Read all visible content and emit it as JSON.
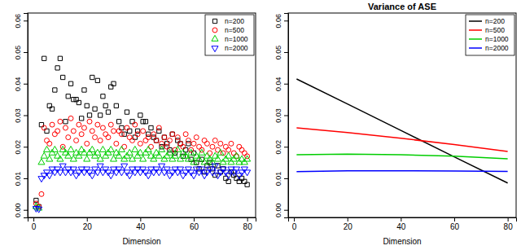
{
  "chart_data": [
    {
      "type": "scatter",
      "xlabel": "Dimension",
      "x": [
        1,
        2,
        3,
        4,
        5,
        6,
        7,
        8,
        9,
        10,
        11,
        12,
        13,
        14,
        15,
        16,
        17,
        18,
        19,
        20,
        21,
        22,
        23,
        24,
        25,
        26,
        27,
        28,
        29,
        30,
        31,
        32,
        33,
        34,
        35,
        36,
        37,
        38,
        39,
        40,
        41,
        42,
        43,
        44,
        45,
        46,
        47,
        48,
        49,
        50,
        51,
        52,
        53,
        54,
        55,
        56,
        57,
        58,
        59,
        60,
        61,
        62,
        63,
        64,
        65,
        66,
        67,
        68,
        69,
        70,
        71,
        72,
        73,
        74,
        75,
        76,
        77,
        78,
        79,
        80
      ],
      "xlim": [
        -2.16,
        83.16
      ],
      "xticks": [
        0,
        20,
        40,
        60,
        80
      ],
      "ylim": [
        -0.0024,
        0.0624
      ],
      "yticks": [
        {
          "value": 0,
          "label": "0.00"
        },
        0.01,
        0.02,
        0.03,
        0.04,
        0.05,
        0.06
      ],
      "legend": "top-right",
      "series": [
        {
          "name": "n=200",
          "color": "#000000",
          "marker": "square",
          "values": [
            0.003,
            0.001,
            0.027,
            0.048,
            0.025,
            0.033,
            0.032,
            0.038,
            0.045,
            0.048,
            0.042,
            0.028,
            0.036,
            0.04,
            0.035,
            0.035,
            0.034,
            0.029,
            0.038,
            0.033,
            0.03,
            0.042,
            0.032,
            0.041,
            0.03,
            0.036,
            0.033,
            0.031,
            0.039,
            0.04,
            0.033,
            0.028,
            0.026,
            0.024,
            0.031,
            0.025,
            0.028,
            0.023,
            0.025,
            0.03,
            0.028,
            0.028,
            0.024,
            0.026,
            0.023,
            0.022,
            0.025,
            0.02,
            0.023,
            0.021,
            0.019,
            0.024,
            0.018,
            0.022,
            0.021,
            0.017,
            0.019,
            0.021,
            0.016,
            0.018,
            0.015,
            0.013,
            0.016,
            0.012,
            0.014,
            0.015,
            0.013,
            0.011,
            0.014,
            0.012,
            0.013,
            0.01,
            0.009,
            0.012,
            0.011,
            0.01,
            0.009,
            0.01,
            0.009,
            0.008
          ]
        },
        {
          "name": "n=500",
          "color": "#ff0000",
          "marker": "circle",
          "values": [
            0.002,
            0.001,
            0.005,
            0.026,
            0.022,
            0.021,
            0.027,
            0.024,
            0.025,
            0.028,
            0.02,
            0.026,
            0.023,
            0.029,
            0.025,
            0.022,
            0.027,
            0.024,
            0.026,
            0.021,
            0.028,
            0.025,
            0.023,
            0.027,
            0.022,
            0.026,
            0.024,
            0.023,
            0.027,
            0.025,
            0.021,
            0.025,
            0.024,
            0.02,
            0.026,
            0.023,
            0.022,
            0.027,
            0.024,
            0.021,
            0.025,
            0.022,
            0.023,
            0.02,
            0.024,
            0.022,
            0.026,
            0.021,
            0.023,
            0.02,
            0.022,
            0.024,
            0.019,
            0.023,
            0.021,
            0.02,
            0.024,
            0.022,
            0.019,
            0.021,
            0.023,
            0.02,
            0.019,
            0.022,
            0.021,
            0.018,
            0.02,
            0.022,
            0.019,
            0.021,
            0.018,
            0.02,
            0.019,
            0.021,
            0.018,
            0.017,
            0.02,
            0.019,
            0.018,
            0.017
          ]
        },
        {
          "name": "n=1000",
          "color": "#00cd00",
          "marker": "triangle",
          "values": [
            0.001,
            0.0005,
            0.015,
            0.017,
            0.019,
            0.016,
            0.018,
            0.019,
            0.017,
            0.016,
            0.019,
            0.018,
            0.017,
            0.019,
            0.016,
            0.018,
            0.017,
            0.019,
            0.018,
            0.016,
            0.018,
            0.019,
            0.017,
            0.018,
            0.016,
            0.019,
            0.017,
            0.018,
            0.019,
            0.016,
            0.018,
            0.017,
            0.019,
            0.016,
            0.017,
            0.018,
            0.016,
            0.019,
            0.017,
            0.018,
            0.016,
            0.018,
            0.019,
            0.017,
            0.016,
            0.018,
            0.017,
            0.019,
            0.016,
            0.017,
            0.018,
            0.016,
            0.017,
            0.019,
            0.016,
            0.018,
            0.017,
            0.016,
            0.018,
            0.015,
            0.017,
            0.016,
            0.018,
            0.015,
            0.017,
            0.016,
            0.015,
            0.017,
            0.016,
            0.018,
            0.015,
            0.016,
            0.017,
            0.015,
            0.016,
            0.017,
            0.015,
            0.016,
            0.015,
            0.016
          ]
        },
        {
          "name": "n=2000",
          "color": "#0000ff",
          "marker": "triangle-down",
          "values": [
            0.0005,
            0.0003,
            0.01,
            0.011,
            0.012,
            0.011,
            0.013,
            0.012,
            0.013,
            0.012,
            0.014,
            0.012,
            0.013,
            0.012,
            0.013,
            0.011,
            0.012,
            0.013,
            0.012,
            0.013,
            0.012,
            0.011,
            0.013,
            0.012,
            0.014,
            0.012,
            0.013,
            0.012,
            0.011,
            0.013,
            0.012,
            0.013,
            0.012,
            0.014,
            0.012,
            0.011,
            0.013,
            0.012,
            0.013,
            0.012,
            0.013,
            0.012,
            0.011,
            0.013,
            0.012,
            0.013,
            0.012,
            0.014,
            0.012,
            0.013,
            0.011,
            0.012,
            0.013,
            0.012,
            0.013,
            0.011,
            0.012,
            0.013,
            0.012,
            0.011,
            0.013,
            0.012,
            0.013,
            0.011,
            0.012,
            0.013,
            0.012,
            0.014,
            0.011,
            0.012,
            0.013,
            0.012,
            0.011,
            0.013,
            0.012,
            0.013,
            0.011,
            0.012,
            0.013,
            0.012
          ]
        }
      ]
    },
    {
      "type": "line",
      "title": "Variance of ASE",
      "xlabel": "Dimension",
      "x": [
        1,
        20,
        40,
        60,
        80
      ],
      "xlim": [
        -2.16,
        83.16
      ],
      "xticks": [
        0,
        20,
        40,
        60,
        80
      ],
      "ylim": [
        -0.0024,
        0.0624
      ],
      "yticks": [
        {
          "value": 0,
          "label": "0.00"
        },
        0.01,
        0.02,
        0.03,
        0.04,
        0.05,
        0.06
      ],
      "legend": "top-right",
      "series": [
        {
          "name": "n=200",
          "color": "#000000",
          "line_style": "solid",
          "values": [
            0.0415,
            0.0336,
            0.0252,
            0.0168,
            0.0085
          ]
        },
        {
          "name": "n=500",
          "color": "#ff0000",
          "line_style": "solid",
          "values": [
            0.026,
            0.0245,
            0.0227,
            0.0207,
            0.0185
          ]
        },
        {
          "name": "n=1000",
          "color": "#00cd00",
          "line_style": "solid",
          "values": [
            0.0175,
            0.0177,
            0.0175,
            0.017,
            0.0162
          ]
        },
        {
          "name": "n=2000",
          "color": "#0000ff",
          "line_style": "solid",
          "values": [
            0.0121,
            0.0124,
            0.0124,
            0.0123,
            0.0122
          ]
        }
      ]
    }
  ]
}
